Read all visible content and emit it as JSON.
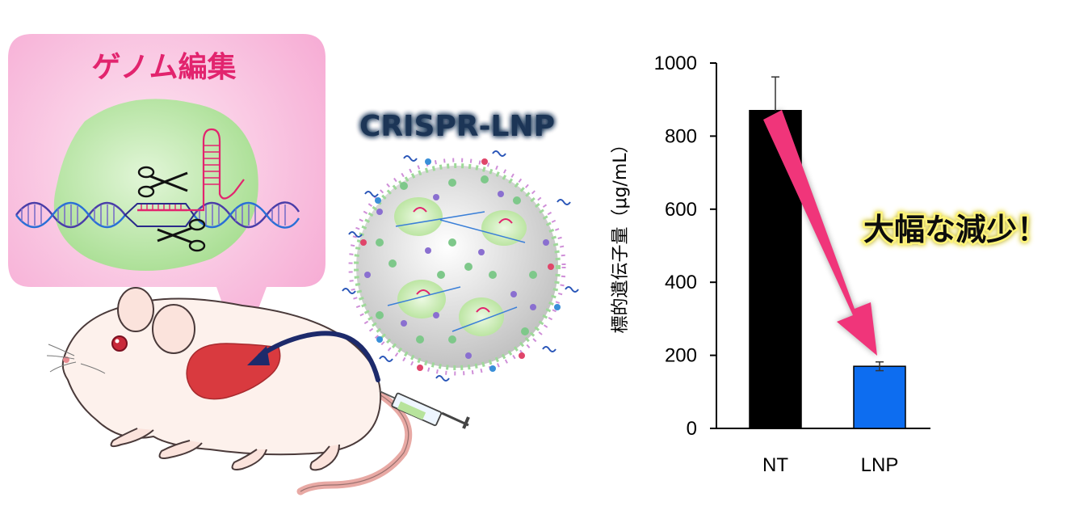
{
  "illustration": {
    "bubble_title": "ゲノム編集",
    "particle_title": "CRISPR-LNP",
    "callout": "大幅な減少！",
    "colors": {
      "bubble": "#f7b3d8",
      "bubble_title": "#e2246e",
      "particle_title": "#1d3557",
      "callout_text": "#111111",
      "callout_glow": "#fff47a",
      "arrow": "#f0357a",
      "liver": "#d93a3f"
    },
    "icons": [
      "scissors-icon",
      "mouse-illustration",
      "syringe-icon",
      "lipid-nanoparticle"
    ]
  },
  "chart_data": {
    "type": "bar",
    "categories": [
      "NT",
      "LNP"
    ],
    "values": [
      870,
      170
    ],
    "errors": [
      92,
      12
    ],
    "bar_colors": [
      "#000000",
      "#0d6df0"
    ],
    "ylabel": "標的遺伝子量（μg/mL）",
    "ylim": [
      0,
      1000
    ],
    "yticks": [
      "0",
      "200",
      "400",
      "600",
      "800",
      "1000"
    ],
    "ytick_values": [
      0,
      200,
      400,
      600,
      800,
      1000
    ],
    "grid": false,
    "legend": "none"
  }
}
